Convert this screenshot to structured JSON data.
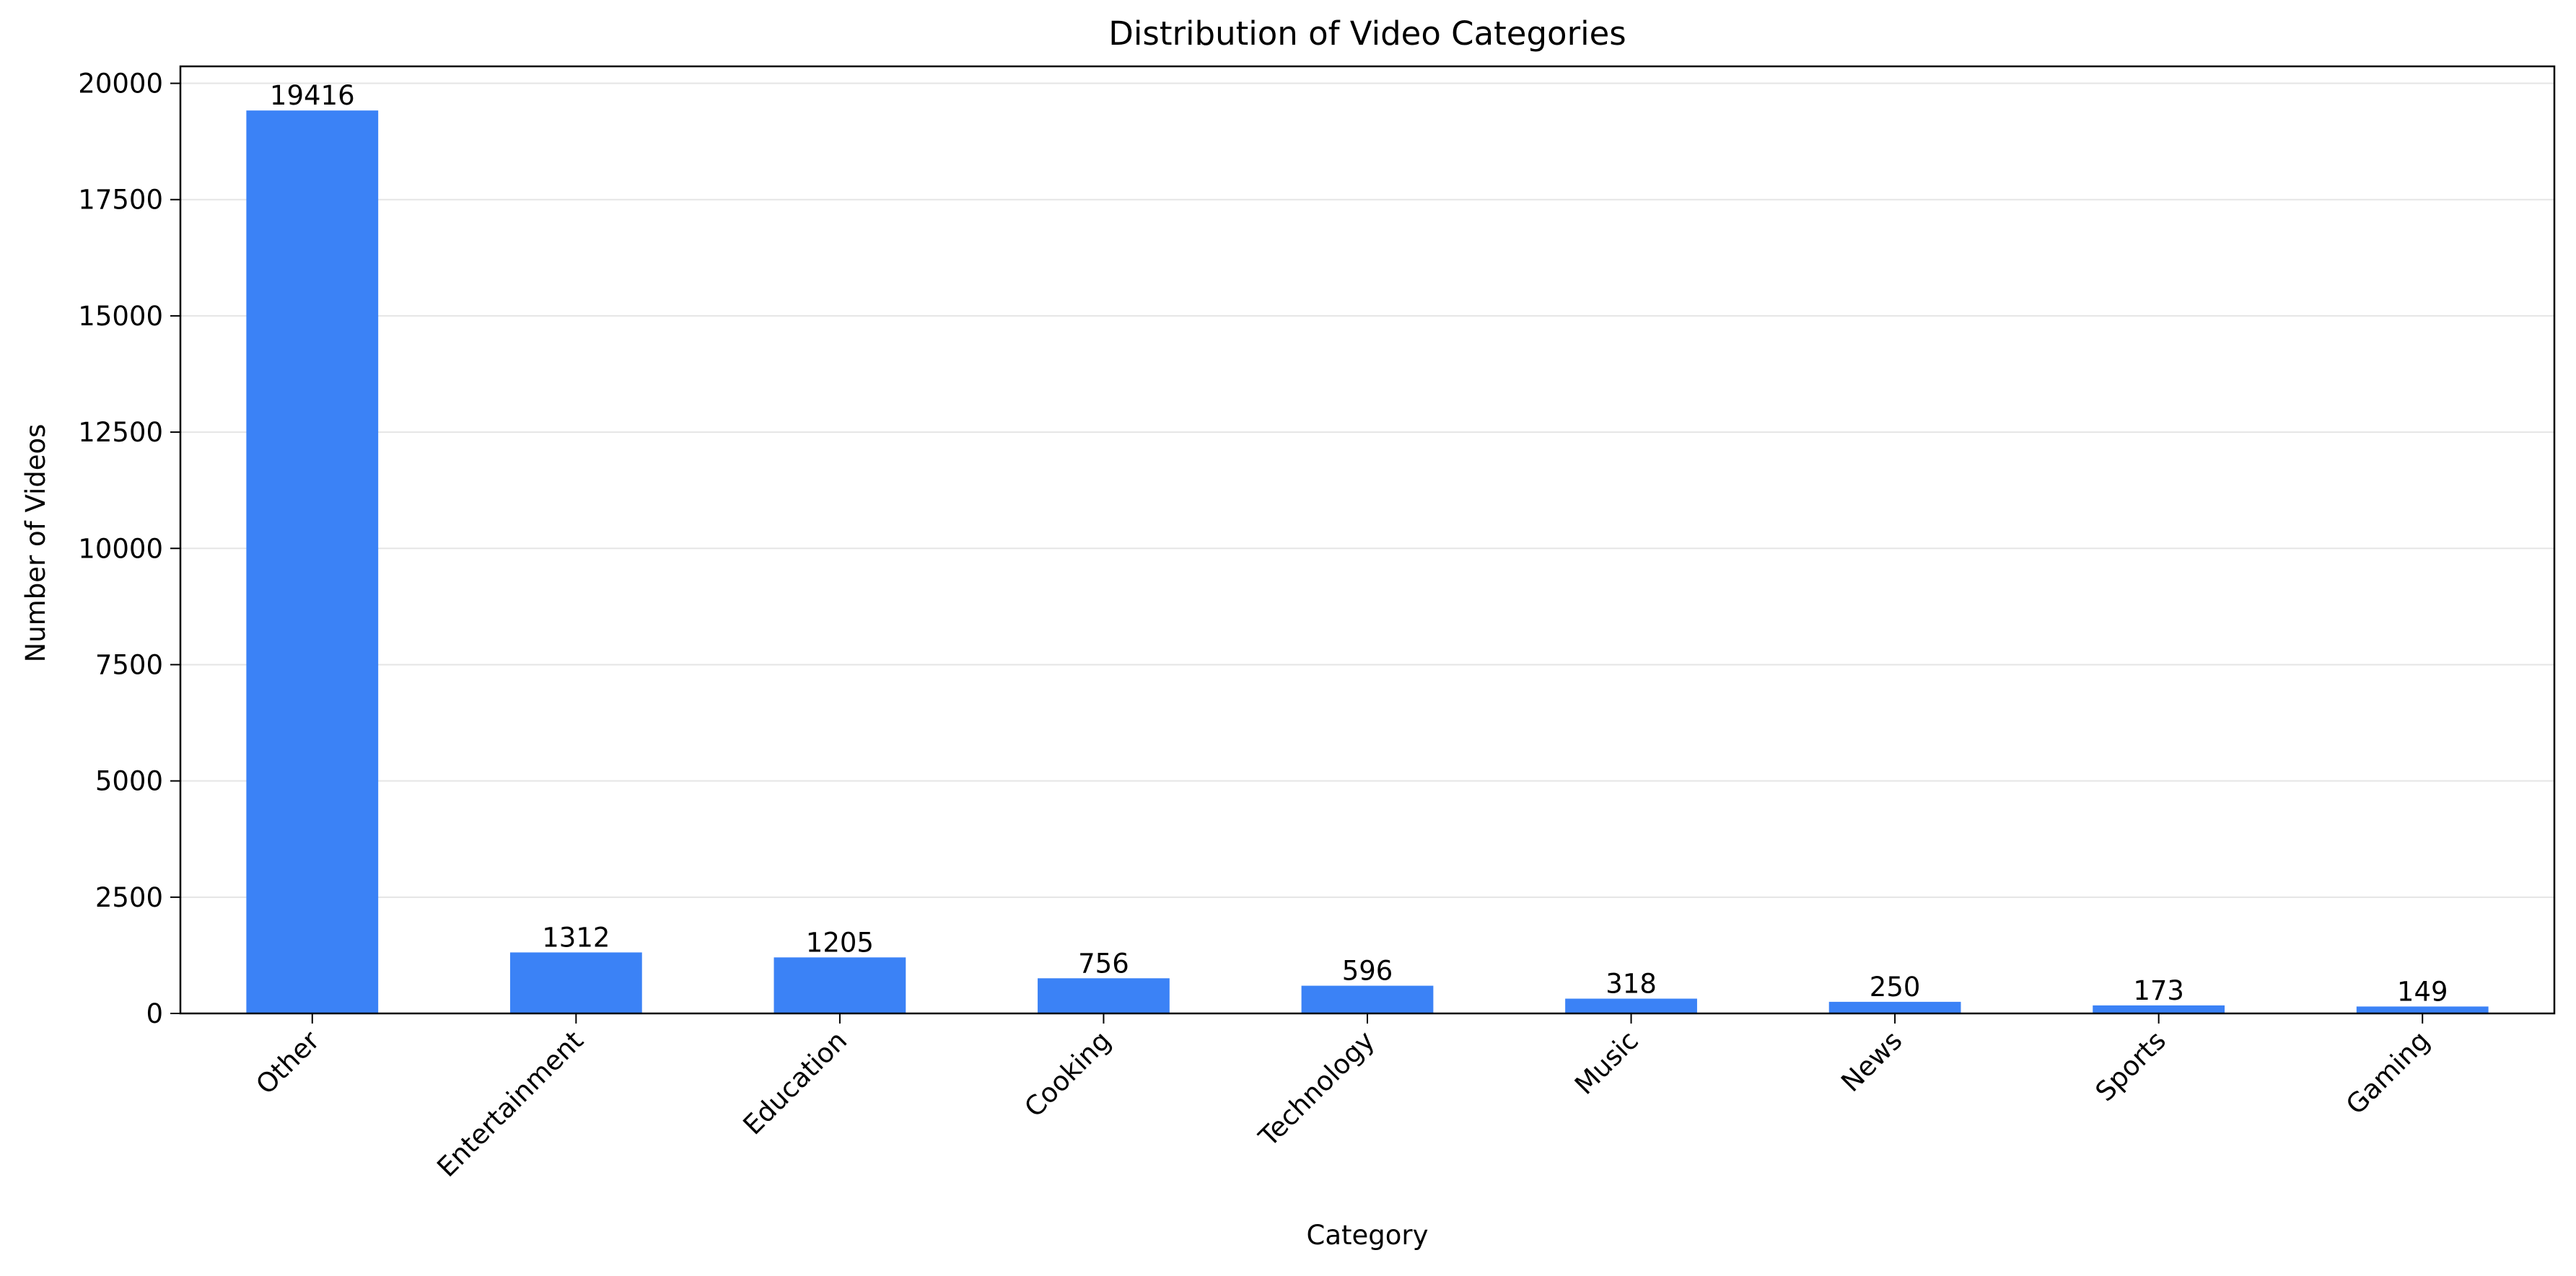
{
  "chart_data": {
    "type": "bar",
    "title": "Distribution of Video Categories",
    "xlabel": "Category",
    "ylabel": "Number of Videos",
    "categories": [
      "Other",
      "Entertainment",
      "Education",
      "Cooking",
      "Technology",
      "Music",
      "News",
      "Sports",
      "Gaming"
    ],
    "values": [
      19416,
      1312,
      1205,
      756,
      596,
      318,
      250,
      173,
      149
    ],
    "data_labels": [
      "19416",
      "1312",
      "1205",
      "756",
      "596",
      "318",
      "250",
      "173",
      "149"
    ],
    "ylim": [
      0,
      20365
    ],
    "yticks": [
      0,
      2500,
      5000,
      7500,
      10000,
      12500,
      15000,
      17500,
      20000
    ],
    "ytick_labels": [
      "0",
      "2500",
      "5000",
      "7500",
      "10000",
      "12500",
      "15000",
      "17500",
      "20000"
    ],
    "grid": "horizontal",
    "legend": "none",
    "colors": {
      "bar": "#3b82f6",
      "grid": "#e5e5e5",
      "axis": "#000000"
    }
  }
}
